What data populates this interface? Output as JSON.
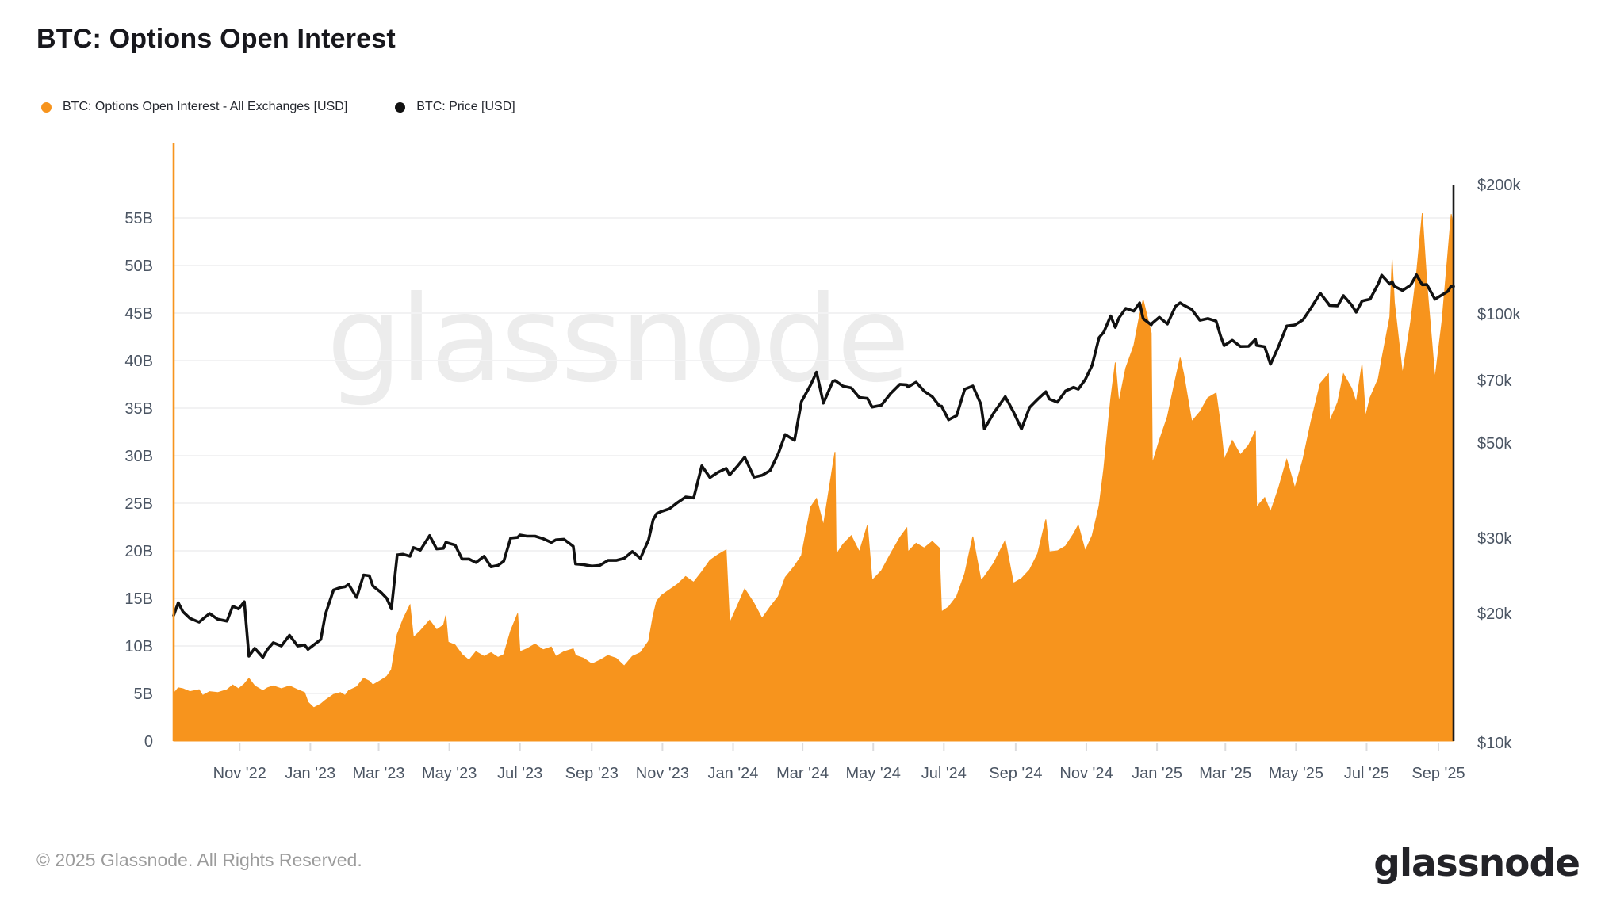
{
  "title": "BTC: Options Open Interest",
  "legend": [
    {
      "label": "BTC: Options Open Interest - All Exchanges [USD]",
      "color": "#f7941d"
    },
    {
      "label": "BTC: Price [USD]",
      "color": "#111111"
    }
  ],
  "watermark": "glassnode",
  "footer": {
    "copyright": "© 2025 Glassnode. All Rights Reserved.",
    "logo": "glassnode"
  },
  "chart_data": {
    "type": "area",
    "title": "BTC: Options Open Interest",
    "grid": "horizontal",
    "legend_position": "top-left",
    "x_domain": [
      "2022-09-05",
      "2025-09-14"
    ],
    "x_ticks": [
      {
        "label": "Nov '22",
        "date": "2022-11-01"
      },
      {
        "label": "Jan '23",
        "date": "2023-01-01"
      },
      {
        "label": "Mar '23",
        "date": "2023-03-01"
      },
      {
        "label": "May '23",
        "date": "2023-05-01"
      },
      {
        "label": "Jul '23",
        "date": "2023-07-01"
      },
      {
        "label": "Sep '23",
        "date": "2023-09-01"
      },
      {
        "label": "Nov '23",
        "date": "2023-11-01"
      },
      {
        "label": "Jan '24",
        "date": "2024-01-01"
      },
      {
        "label": "Mar '24",
        "date": "2024-03-01"
      },
      {
        "label": "May '24",
        "date": "2024-05-01"
      },
      {
        "label": "Jul '24",
        "date": "2024-07-01"
      },
      {
        "label": "Sep '24",
        "date": "2024-09-01"
      },
      {
        "label": "Nov '24",
        "date": "2024-11-01"
      },
      {
        "label": "Jan '25",
        "date": "2025-01-01"
      },
      {
        "label": "Mar '25",
        "date": "2025-03-01"
      },
      {
        "label": "May '25",
        "date": "2025-05-01"
      },
      {
        "label": "Jul '25",
        "date": "2025-07-01"
      },
      {
        "label": "Sep '25",
        "date": "2025-09-01"
      }
    ],
    "left_axis": {
      "title": "Options Open Interest",
      "unit": "billion USD",
      "scale": "linear",
      "min": 0,
      "tick_values": [
        0,
        5,
        10,
        15,
        20,
        25,
        30,
        35,
        40,
        45,
        50,
        55
      ],
      "tick_labels": [
        "0",
        "5B",
        "10B",
        "15B",
        "20B",
        "25B",
        "30B",
        "35B",
        "40B",
        "45B",
        "50B",
        "55B"
      ]
    },
    "right_axis": {
      "title": "BTC Price",
      "unit": "thousand USD",
      "scale": "log",
      "min": 10,
      "max": 200,
      "tick_values": [
        10,
        20,
        30,
        50,
        70,
        100,
        200
      ],
      "tick_labels": [
        "$10k",
        "$20k",
        "$30k",
        "$50k",
        "$70k",
        "$100k",
        "$200k"
      ]
    },
    "series": [
      {
        "name": "BTC: Options Open Interest - All Exchanges [USD]",
        "type": "area",
        "axis": "left",
        "color": "#f7941d"
      },
      {
        "name": "BTC: Price [USD]",
        "type": "line",
        "axis": "right",
        "color": "#111111"
      }
    ],
    "points_format": [
      "date",
      "open_interest_billion_usd",
      "price_thousand_usd"
    ],
    "points": [
      [
        "2022-09-05",
        5.0,
        19.8
      ],
      [
        "2022-09-09",
        5.6,
        21.2
      ],
      [
        "2022-09-13",
        5.5,
        20.2
      ],
      [
        "2022-09-19",
        5.2,
        19.5
      ],
      [
        "2022-09-27",
        5.4,
        19.1
      ],
      [
        "2022-09-30",
        4.8,
        19.4
      ],
      [
        "2022-10-06",
        5.2,
        20.0
      ],
      [
        "2022-10-13",
        5.1,
        19.4
      ],
      [
        "2022-10-21",
        5.4,
        19.2
      ],
      [
        "2022-10-26",
        5.9,
        20.8
      ],
      [
        "2022-10-31",
        5.5,
        20.5
      ],
      [
        "2022-11-05",
        6.0,
        21.3
      ],
      [
        "2022-11-09",
        6.6,
        15.9
      ],
      [
        "2022-11-14",
        5.8,
        16.6
      ],
      [
        "2022-11-21",
        5.3,
        15.8
      ],
      [
        "2022-11-25",
        5.6,
        16.5
      ],
      [
        "2022-11-30",
        5.8,
        17.1
      ],
      [
        "2022-12-07",
        5.5,
        16.8
      ],
      [
        "2022-12-14",
        5.8,
        17.8
      ],
      [
        "2022-12-21",
        5.4,
        16.8
      ],
      [
        "2022-12-27",
        5.1,
        16.9
      ],
      [
        "2022-12-30",
        4.1,
        16.5
      ],
      [
        "2023-01-04",
        3.5,
        16.9
      ],
      [
        "2023-01-10",
        3.9,
        17.4
      ],
      [
        "2023-01-14",
        4.3,
        19.9
      ],
      [
        "2023-01-21",
        4.9,
        22.7
      ],
      [
        "2023-01-27",
        5.1,
        23.0
      ],
      [
        "2023-01-31",
        4.8,
        23.1
      ],
      [
        "2023-02-03",
        5.3,
        23.4
      ],
      [
        "2023-02-10",
        5.7,
        21.8
      ],
      [
        "2023-02-16",
        6.6,
        24.6
      ],
      [
        "2023-02-21",
        6.3,
        24.5
      ],
      [
        "2023-02-24",
        5.9,
        23.2
      ],
      [
        "2023-03-03",
        6.4,
        22.4
      ],
      [
        "2023-03-08",
        6.8,
        21.7
      ],
      [
        "2023-03-12",
        7.5,
        20.5
      ],
      [
        "2023-03-17",
        11.2,
        27.4
      ],
      [
        "2023-03-22",
        12.8,
        27.5
      ],
      [
        "2023-03-28",
        14.3,
        27.2
      ],
      [
        "2023-03-31",
        10.9,
        28.5
      ],
      [
        "2023-04-06",
        11.6,
        28.1
      ],
      [
        "2023-04-14",
        12.7,
        30.4
      ],
      [
        "2023-04-20",
        11.7,
        28.3
      ],
      [
        "2023-04-26",
        12.2,
        28.4
      ],
      [
        "2023-04-28",
        13.2,
        29.3
      ],
      [
        "2023-04-30",
        10.4,
        29.2
      ],
      [
        "2023-05-06",
        10.1,
        28.9
      ],
      [
        "2023-05-12",
        9.1,
        26.8
      ],
      [
        "2023-05-18",
        8.5,
        26.8
      ],
      [
        "2023-05-24",
        9.4,
        26.3
      ],
      [
        "2023-05-31",
        8.9,
        27.2
      ],
      [
        "2023-06-06",
        9.3,
        25.7
      ],
      [
        "2023-06-12",
        8.8,
        25.9
      ],
      [
        "2023-06-17",
        9.1,
        26.5
      ],
      [
        "2023-06-23",
        11.6,
        30.0
      ],
      [
        "2023-06-29",
        13.4,
        30.1
      ],
      [
        "2023-07-01",
        9.4,
        30.5
      ],
      [
        "2023-07-07",
        9.7,
        30.3
      ],
      [
        "2023-07-14",
        10.2,
        30.3
      ],
      [
        "2023-07-21",
        9.6,
        29.9
      ],
      [
        "2023-07-28",
        9.9,
        29.3
      ],
      [
        "2023-08-01",
        8.9,
        29.7
      ],
      [
        "2023-08-08",
        9.4,
        29.8
      ],
      [
        "2023-08-16",
        9.7,
        28.7
      ],
      [
        "2023-08-18",
        9.0,
        26.1
      ],
      [
        "2023-08-25",
        8.7,
        26.0
      ],
      [
        "2023-09-01",
        8.1,
        25.8
      ],
      [
        "2023-09-08",
        8.5,
        25.9
      ],
      [
        "2023-09-15",
        9.0,
        26.6
      ],
      [
        "2023-09-22",
        8.7,
        26.6
      ],
      [
        "2023-09-29",
        7.9,
        26.9
      ],
      [
        "2023-10-06",
        8.9,
        27.9
      ],
      [
        "2023-10-13",
        9.3,
        26.9
      ],
      [
        "2023-10-20",
        10.5,
        29.7
      ],
      [
        "2023-10-24",
        13.2,
        33.1
      ],
      [
        "2023-10-27",
        14.7,
        34.2
      ],
      [
        "2023-10-31",
        15.3,
        34.6
      ],
      [
        "2023-11-07",
        15.9,
        35.1
      ],
      [
        "2023-11-14",
        16.5,
        36.3
      ],
      [
        "2023-11-21",
        17.3,
        37.4
      ],
      [
        "2023-11-28",
        16.7,
        37.2
      ],
      [
        "2023-12-05",
        17.8,
        44.2
      ],
      [
        "2023-12-12",
        19.0,
        41.5
      ],
      [
        "2023-12-19",
        19.6,
        42.7
      ],
      [
        "2023-12-26",
        20.1,
        43.6
      ],
      [
        "2023-12-29",
        12.4,
        42.1
      ],
      [
        "2024-01-05",
        14.3,
        44.2
      ],
      [
        "2024-01-11",
        16.0,
        46.3
      ],
      [
        "2024-01-19",
        14.5,
        41.6
      ],
      [
        "2024-01-26",
        12.9,
        42.0
      ],
      [
        "2024-02-02",
        14.1,
        43.1
      ],
      [
        "2024-02-09",
        15.2,
        47.2
      ],
      [
        "2024-02-15",
        17.2,
        52.3
      ],
      [
        "2024-02-23",
        18.4,
        50.7
      ],
      [
        "2024-02-29",
        19.5,
        62.4
      ],
      [
        "2024-03-08",
        24.6,
        68.3
      ],
      [
        "2024-03-13",
        25.5,
        73.1
      ],
      [
        "2024-03-19",
        22.7,
        61.9
      ],
      [
        "2024-03-27",
        28.9,
        69.5
      ],
      [
        "2024-03-29",
        30.4,
        69.9
      ],
      [
        "2024-03-30",
        19.6,
        69.6
      ],
      [
        "2024-04-05",
        20.7,
        67.8
      ],
      [
        "2024-04-12",
        21.6,
        67.2
      ],
      [
        "2024-04-19",
        19.9,
        63.8
      ],
      [
        "2024-04-26",
        22.7,
        63.5
      ],
      [
        "2024-04-30",
        16.9,
        60.6
      ],
      [
        "2024-05-08",
        17.9,
        61.2
      ],
      [
        "2024-05-16",
        19.7,
        65.2
      ],
      [
        "2024-05-24",
        21.4,
        68.5
      ],
      [
        "2024-05-30",
        22.4,
        68.3
      ],
      [
        "2024-05-31",
        19.9,
        67.5
      ],
      [
        "2024-06-07",
        20.8,
        69.3
      ],
      [
        "2024-06-14",
        20.3,
        66.0
      ],
      [
        "2024-06-21",
        21.0,
        64.1
      ],
      [
        "2024-06-27",
        20.3,
        61.0
      ],
      [
        "2024-06-29",
        13.6,
        60.9
      ],
      [
        "2024-07-05",
        14.1,
        56.6
      ],
      [
        "2024-07-12",
        15.2,
        57.9
      ],
      [
        "2024-07-19",
        17.6,
        66.7
      ],
      [
        "2024-07-26",
        21.5,
        67.9
      ],
      [
        "2024-08-02",
        16.9,
        61.5
      ],
      [
        "2024-08-05",
        17.3,
        53.9
      ],
      [
        "2024-08-13",
        18.7,
        58.7
      ],
      [
        "2024-08-23",
        21.1,
        64.1
      ],
      [
        "2024-08-30",
        16.6,
        59.1
      ],
      [
        "2024-09-06",
        17.1,
        53.9
      ],
      [
        "2024-09-13",
        18.0,
        60.5
      ],
      [
        "2024-09-20",
        19.7,
        63.2
      ],
      [
        "2024-09-27",
        23.3,
        65.8
      ],
      [
        "2024-09-30",
        19.9,
        63.3
      ],
      [
        "2024-10-07",
        20.0,
        62.2
      ],
      [
        "2024-10-14",
        20.5,
        66.1
      ],
      [
        "2024-10-21",
        21.8,
        67.4
      ],
      [
        "2024-10-25",
        22.7,
        66.7
      ],
      [
        "2024-10-31",
        20.0,
        70.2
      ],
      [
        "2024-11-06",
        21.6,
        75.9
      ],
      [
        "2024-11-12",
        24.7,
        88.0
      ],
      [
        "2024-11-16",
        28.6,
        90.6
      ],
      [
        "2024-11-22",
        36.0,
        98.9
      ],
      [
        "2024-11-26",
        39.8,
        93.0
      ],
      [
        "2024-11-29",
        35.6,
        97.7
      ],
      [
        "2024-12-05",
        39.2,
        103.0
      ],
      [
        "2024-12-12",
        41.6,
        101.5
      ],
      [
        "2024-12-17",
        44.8,
        106.1
      ],
      [
        "2024-12-20",
        46.4,
        97.5
      ],
      [
        "2024-12-27",
        42.9,
        94.3
      ],
      [
        "2024-12-28",
        29.2,
        95.2
      ],
      [
        "2025-01-03",
        31.6,
        98.2
      ],
      [
        "2025-01-10",
        34.1,
        94.7
      ],
      [
        "2025-01-17",
        38.1,
        104.1
      ],
      [
        "2025-01-21",
        40.3,
        106.1
      ],
      [
        "2025-01-24",
        38.6,
        104.8
      ],
      [
        "2025-01-31",
        33.6,
        102.4
      ],
      [
        "2025-02-07",
        34.6,
        96.6
      ],
      [
        "2025-02-14",
        36.1,
        97.5
      ],
      [
        "2025-02-21",
        36.6,
        96.2
      ],
      [
        "2025-02-25",
        33.1,
        88.6
      ],
      [
        "2025-02-28",
        29.6,
        84.3
      ],
      [
        "2025-03-07",
        31.6,
        86.8
      ],
      [
        "2025-03-14",
        30.1,
        83.9
      ],
      [
        "2025-03-21",
        31.1,
        84.0
      ],
      [
        "2025-03-27",
        32.6,
        87.2
      ],
      [
        "2025-03-28",
        24.6,
        84.4
      ],
      [
        "2025-04-04",
        25.6,
        83.8
      ],
      [
        "2025-04-09",
        24.1,
        76.3
      ],
      [
        "2025-04-16",
        26.6,
        84.0
      ],
      [
        "2025-04-23",
        29.6,
        93.7
      ],
      [
        "2025-04-30",
        26.6,
        94.2
      ],
      [
        "2025-05-07",
        29.6,
        96.8
      ],
      [
        "2025-05-14",
        33.6,
        103.2
      ],
      [
        "2025-05-22",
        37.6,
        111.7
      ],
      [
        "2025-05-29",
        38.6,
        105.6
      ],
      [
        "2025-05-30",
        33.6,
        104.6
      ],
      [
        "2025-06-06",
        35.6,
        104.4
      ],
      [
        "2025-06-11",
        38.6,
        110.3
      ],
      [
        "2025-06-18",
        37.1,
        104.9
      ],
      [
        "2025-06-22",
        35.6,
        100.9
      ],
      [
        "2025-06-27",
        39.6,
        107.1
      ],
      [
        "2025-06-30",
        34.1,
        107.6
      ],
      [
        "2025-07-04",
        36.1,
        108.2
      ],
      [
        "2025-07-11",
        38.1,
        117.5
      ],
      [
        "2025-07-14",
        40.1,
        123.1
      ],
      [
        "2025-07-21",
        44.6,
        117.3
      ],
      [
        "2025-07-23",
        50.6,
        118.9
      ],
      [
        "2025-07-25",
        46.1,
        115.9
      ],
      [
        "2025-08-01",
        38.6,
        113.4
      ],
      [
        "2025-08-08",
        44.1,
        116.7
      ],
      [
        "2025-08-13",
        49.1,
        123.3
      ],
      [
        "2025-08-18",
        55.5,
        116.9
      ],
      [
        "2025-08-22",
        48.1,
        117.0
      ],
      [
        "2025-08-29",
        38.1,
        108.2
      ],
      [
        "2025-09-04",
        44.1,
        110.7
      ],
      [
        "2025-09-09",
        51.1,
        112.8
      ],
      [
        "2025-09-12",
        55.4,
        116.1
      ],
      [
        "2025-09-14",
        54.0,
        115.8
      ]
    ]
  }
}
